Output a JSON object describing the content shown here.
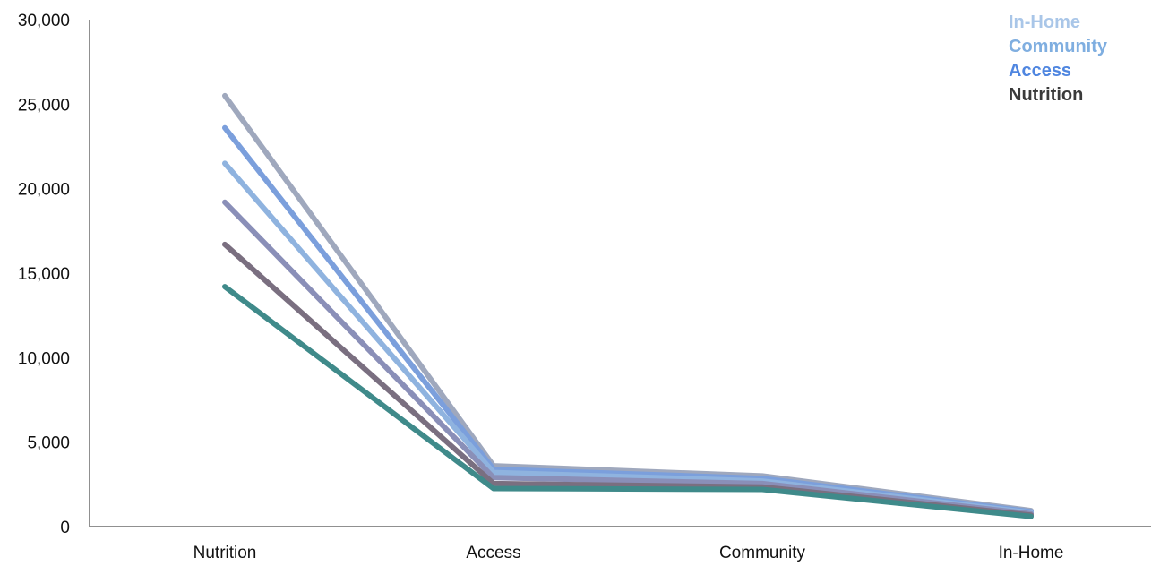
{
  "chart_data": {
    "type": "line",
    "title": "",
    "xlabel": "",
    "ylabel": "",
    "categories": [
      "Nutrition",
      "Access",
      "Community",
      "In-Home"
    ],
    "ylim": [
      0,
      30000
    ],
    "yticks": [
      0,
      5000,
      10000,
      15000,
      20000,
      25000,
      30000
    ],
    "ytick_labels": [
      "0",
      "5,000",
      "10,000",
      "15,000",
      "20,000",
      "25,000",
      "30,000"
    ],
    "grid": false,
    "series": [
      {
        "values": [
          25500,
          3600,
          3000,
          950
        ],
        "color": "#9fa8bd"
      },
      {
        "values": [
          23600,
          3400,
          2850,
          880
        ],
        "color": "#7b9fdc"
      },
      {
        "values": [
          21500,
          3200,
          2700,
          820
        ],
        "color": "#8fb3df"
      },
      {
        "values": [
          19200,
          2900,
          2550,
          760
        ],
        "color": "#8a8fb8"
      },
      {
        "values": [
          16700,
          2550,
          2350,
          680
        ],
        "color": "#7a6f80"
      },
      {
        "values": [
          14200,
          2250,
          2200,
          600
        ],
        "color": "#3f8a8a"
      }
    ],
    "legend": {
      "position": "top-right",
      "items": [
        {
          "label": "In-Home",
          "color": "#a9c6e8"
        },
        {
          "label": "Community",
          "color": "#7faee0"
        },
        {
          "label": "Access",
          "color": "#4f86e0"
        },
        {
          "label": "Nutrition",
          "color": "#3a3a3a"
        }
      ]
    }
  }
}
